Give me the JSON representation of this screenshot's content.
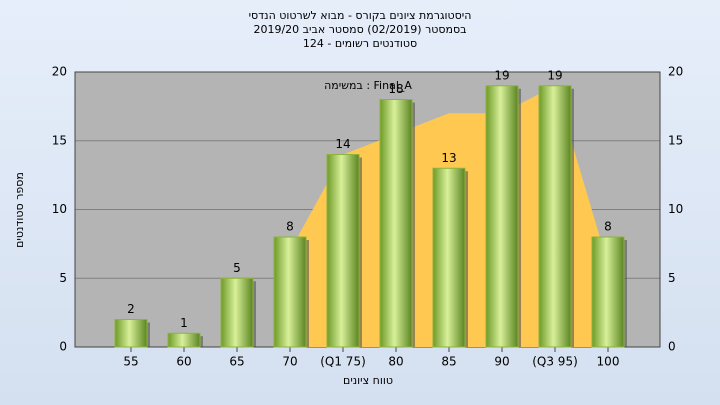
{
  "chart_data": {
    "type": "bar",
    "title": [
      "היסטוגרמת ציונים בקורס - מבוא לשרטוט הנדסי",
      "בסמסטר  (02/2019)  סמסטר אביב 2019/20",
      "סטודנטים רשומים - 124"
    ],
    "annotation": "במשימה : Final_A",
    "x_label": "טווח ציונים",
    "y_label": "מספר סטודנטים",
    "categories": [
      "55",
      "60",
      "65",
      "70",
      "(Q1 75)",
      "80",
      "85",
      "90",
      "(Q3 95)",
      "100"
    ],
    "values": [
      2,
      1,
      5,
      8,
      14,
      18,
      13,
      19,
      19,
      8
    ],
    "color": "#8db43c",
    "area_values": [
      null,
      null,
      null,
      7,
      14,
      15.5,
      17,
      17,
      19,
      6
    ],
    "area_color": "#ffc850",
    "ylim": [
      0,
      20
    ],
    "yticks": [
      0,
      5,
      10,
      15,
      20
    ],
    "grid": true
  }
}
